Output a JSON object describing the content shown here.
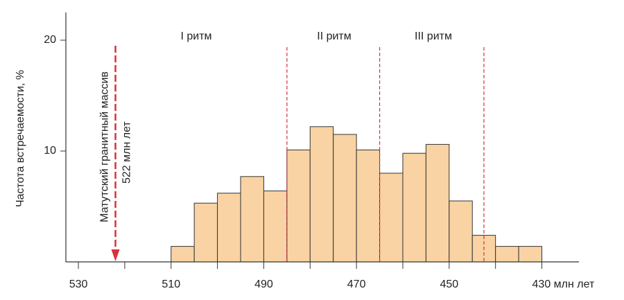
{
  "chart_data": {
    "type": "histogram",
    "y_label": "Частота встречаемости, %",
    "bins": [
      510,
      505,
      500,
      495,
      490,
      485,
      480,
      475,
      470,
      465,
      460,
      455,
      450,
      445,
      440,
      435,
      430
    ],
    "values": [
      1.4,
      5.3,
      6.2,
      7.7,
      6.4,
      10.1,
      12.2,
      11.5,
      10.1,
      8.0,
      9.8,
      10.6,
      5.5,
      2.4,
      1.4,
      1.4
    ],
    "color": "#f9d3a3",
    "edge_color": "#333333",
    "xlim": [
      532.7,
      422
    ],
    "xticks": [
      530,
      510,
      490,
      470,
      450,
      {
        "value": 430,
        "label": "430 млн лет"
      }
    ],
    "xminor": [
      520,
      500,
      480,
      460,
      440
    ],
    "ylim": [
      0,
      22.5
    ],
    "yticks": [
      10,
      20
    ],
    "boundaries": [
      485,
      465,
      442.5
    ],
    "boundary_color": "#d9303a",
    "rhythms": [
      "I ритм",
      "II ритм",
      "III ритм"
    ],
    "marker": {
      "value": 522,
      "label": "Матутский гранитный массив",
      "value_label": "522 млн лет",
      "color": "#d9303a"
    }
  }
}
